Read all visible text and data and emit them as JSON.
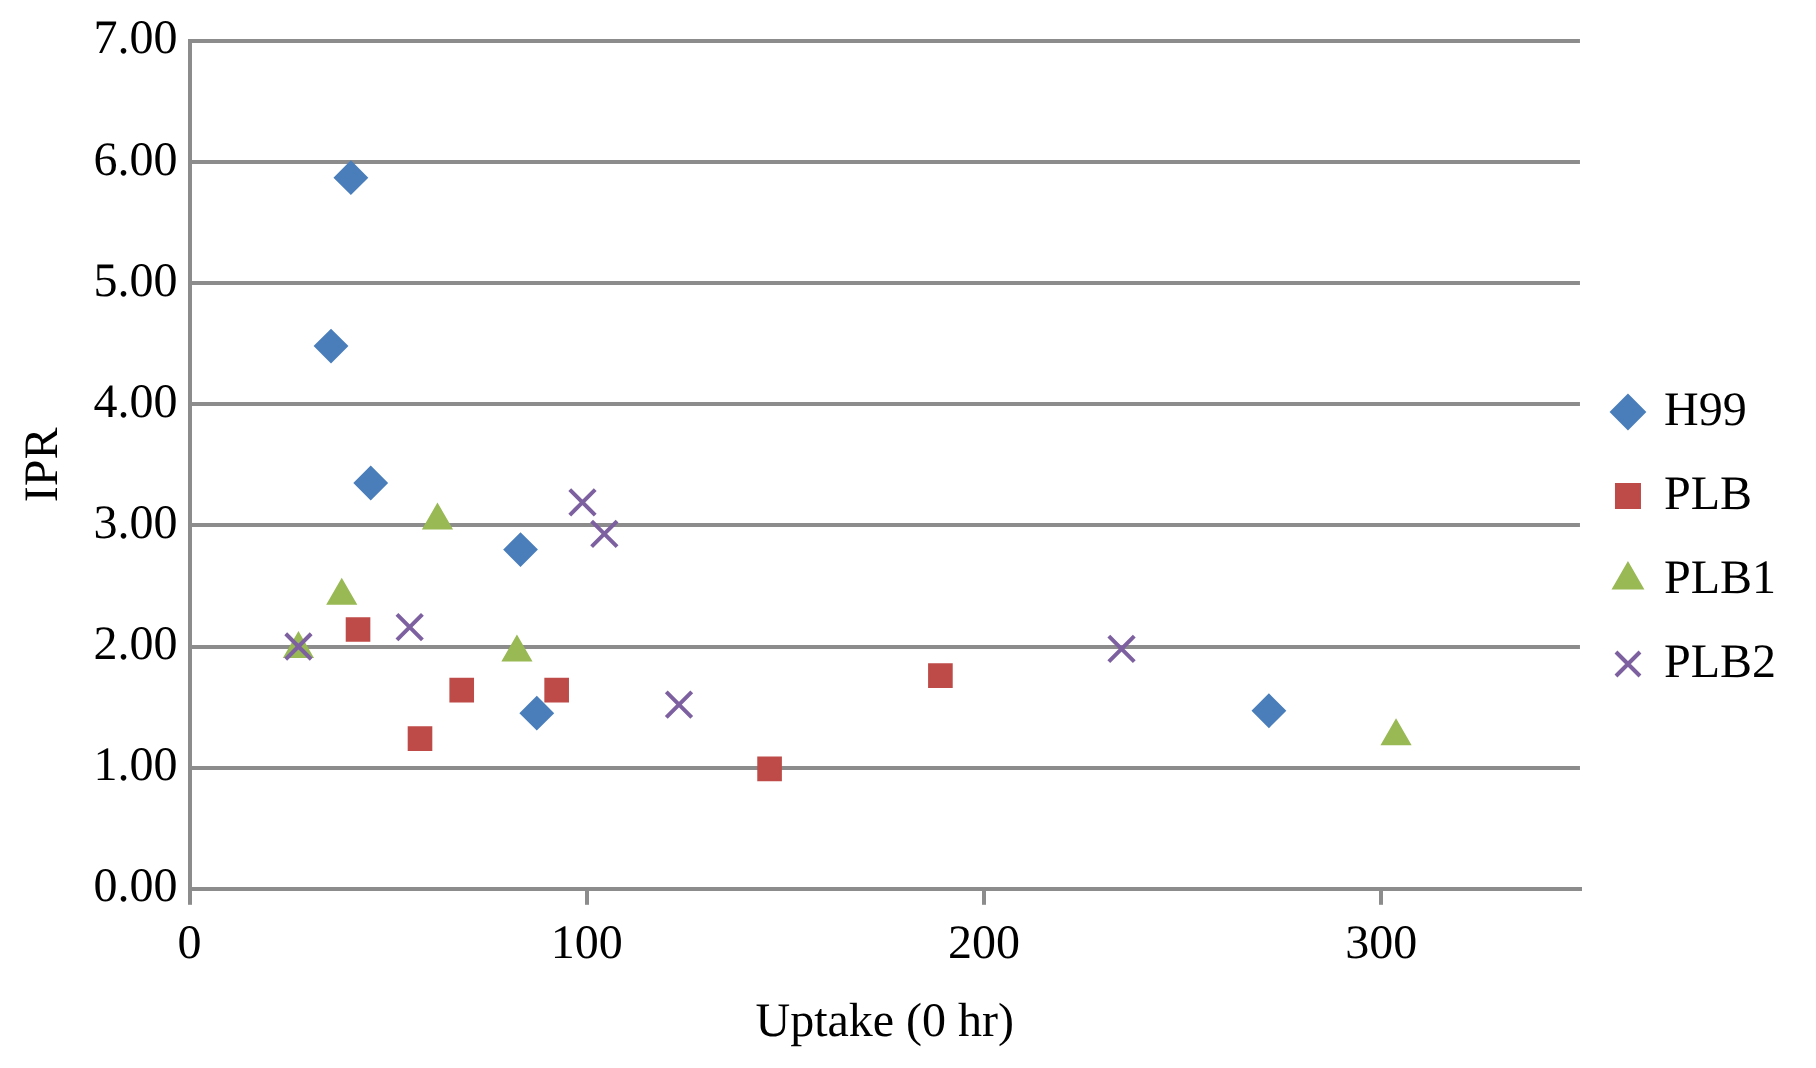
{
  "chart_data": {
    "type": "scatter",
    "xlabel": "Uptake (0 hr)",
    "ylabel": "IPR",
    "xlim": [
      0,
      350
    ],
    "xticks": [
      0,
      100,
      200,
      300
    ],
    "ylim": [
      0,
      7
    ],
    "yticks": [
      {
        "value": 0,
        "label": "0.00"
      },
      {
        "value": 1,
        "label": "1.00"
      },
      {
        "value": 2,
        "label": "2.00"
      },
      {
        "value": 3,
        "label": "3.00"
      },
      {
        "value": 4,
        "label": "4.00"
      },
      {
        "value": 5,
        "label": "5.00"
      },
      {
        "value": 6,
        "label": "6.00"
      },
      {
        "value": 7,
        "label": "7.00"
      }
    ],
    "grid": "y",
    "legend": "right",
    "series": [
      {
        "name": "H99",
        "color": "#4a7ebb",
        "marker": "diamond",
        "x": [
          40.6,
          35.6,
          45.6,
          83.3,
          87.4,
          271.7
        ],
        "values": [
          5.87,
          4.48,
          3.35,
          2.8,
          1.45,
          1.47
        ]
      },
      {
        "name": "PLB",
        "color": "#be4b48",
        "marker": "square",
        "x": [
          42.4,
          58,
          68.5,
          92.4,
          146,
          189
        ],
        "values": [
          2.14,
          1.24,
          1.64,
          1.64,
          0.99,
          1.76
        ]
      },
      {
        "name": "PLB1",
        "color": "#98b954",
        "marker": "triangle",
        "x": [
          27.4,
          38.3,
          62.4,
          82.4,
          303.7
        ],
        "values": [
          1.98,
          2.42,
          3.04,
          1.95,
          1.26
        ]
      },
      {
        "name": "PLB2",
        "color": "#7d60a0",
        "marker": "cross",
        "x": [
          27.4,
          55.4,
          98.9,
          104.4,
          123.2,
          234.6
        ],
        "values": [
          2.0,
          2.16,
          3.19,
          2.93,
          1.52,
          1.98
        ]
      }
    ]
  }
}
